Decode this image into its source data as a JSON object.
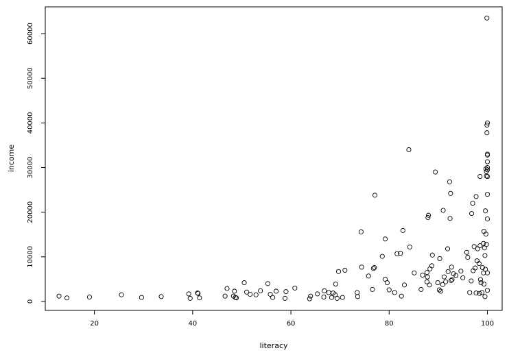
{
  "chart_data": {
    "type": "scatter",
    "title": "",
    "xlabel": "literacy",
    "ylabel": "income",
    "xlim": [
      10,
      103
    ],
    "ylim": [
      -2000,
      66000
    ],
    "x_ticks": [
      20,
      40,
      60,
      80,
      100
    ],
    "y_ticks": [
      0,
      10000,
      20000,
      30000,
      40000,
      50000,
      60000
    ],
    "x_tick_labels": [
      "20",
      "40",
      "60",
      "80",
      "100"
    ],
    "y_tick_labels": [
      "0",
      "10000",
      "20000",
      "30000",
      "40000",
      "50000",
      "60000"
    ],
    "grid": false,
    "marker": "open-circle",
    "marker_color": "#000000",
    "points": [
      [
        12.8,
        1200
      ],
      [
        14.4,
        800
      ],
      [
        19.0,
        1000
      ],
      [
        25.5,
        1500
      ],
      [
        29.6,
        900
      ],
      [
        33.6,
        1100
      ],
      [
        39.2,
        1700
      ],
      [
        39.5,
        700
      ],
      [
        41.0,
        1900
      ],
      [
        41.1,
        1800
      ],
      [
        41.4,
        800
      ],
      [
        46.6,
        1200
      ],
      [
        47.0,
        2900
      ],
      [
        48.3,
        1200
      ],
      [
        48.5,
        2300
      ],
      [
        48.7,
        900
      ],
      [
        48.9,
        800
      ],
      [
        50.5,
        4200
      ],
      [
        51.0,
        2100
      ],
      [
        51.7,
        1600
      ],
      [
        52.9,
        1500
      ],
      [
        53.8,
        2400
      ],
      [
        55.3,
        4000
      ],
      [
        55.8,
        1600
      ],
      [
        56.3,
        900
      ],
      [
        57.0,
        2300
      ],
      [
        58.8,
        700
      ],
      [
        59.0,
        2200
      ],
      [
        60.8,
        3000
      ],
      [
        63.8,
        600
      ],
      [
        64.0,
        1200
      ],
      [
        65.4,
        1700
      ],
      [
        66.7,
        1000
      ],
      [
        66.8,
        2400
      ],
      [
        67.7,
        2000
      ],
      [
        68.3,
        900
      ],
      [
        68.6,
        1900
      ],
      [
        69.0,
        1500
      ],
      [
        69.1,
        3900
      ],
      [
        69.4,
        700
      ],
      [
        69.7,
        6700
      ],
      [
        70.5,
        900
      ],
      [
        71.0,
        7000
      ],
      [
        73.5,
        2000
      ],
      [
        73.6,
        1100
      ],
      [
        74.3,
        15600
      ],
      [
        74.4,
        7700
      ],
      [
        75.8,
        5700
      ],
      [
        76.6,
        2700
      ],
      [
        76.8,
        7400
      ],
      [
        77.0,
        7600
      ],
      [
        77.1,
        23800
      ],
      [
        78.6,
        10100
      ],
      [
        79.2,
        14000
      ],
      [
        79.2,
        5000
      ],
      [
        79.6,
        4200
      ],
      [
        80.0,
        2600
      ],
      [
        81.1,
        2000
      ],
      [
        81.6,
        10700
      ],
      [
        82.3,
        10800
      ],
      [
        82.5,
        1200
      ],
      [
        82.8,
        15900
      ],
      [
        83.1,
        3700
      ],
      [
        84.0,
        34000
      ],
      [
        84.2,
        12200
      ],
      [
        85.1,
        6400
      ],
      [
        86.5,
        2700
      ],
      [
        86.8,
        5900
      ],
      [
        87.7,
        4400
      ],
      [
        87.7,
        6500
      ],
      [
        87.8,
        5500
      ],
      [
        87.9,
        18800
      ],
      [
        88.0,
        19300
      ],
      [
        88.2,
        3700
      ],
      [
        88.3,
        7300
      ],
      [
        88.7,
        8000
      ],
      [
        88.8,
        10400
      ],
      [
        89.4,
        29000
      ],
      [
        89.9,
        4200
      ],
      [
        90.2,
        2600
      ],
      [
        90.3,
        9600
      ],
      [
        90.5,
        2300
      ],
      [
        90.9,
        3800
      ],
      [
        91.0,
        20400
      ],
      [
        91.2,
        5500
      ],
      [
        91.5,
        4400
      ],
      [
        91.9,
        11800
      ],
      [
        92.0,
        6700
      ],
      [
        92.3,
        26800
      ],
      [
        92.4,
        18600
      ],
      [
        92.5,
        24200
      ],
      [
        92.6,
        4700
      ],
      [
        92.7,
        7700
      ],
      [
        92.8,
        4900
      ],
      [
        93.1,
        6200
      ],
      [
        93.6,
        5800
      ],
      [
        94.6,
        6800
      ],
      [
        95.0,
        5300
      ],
      [
        95.8,
        11000
      ],
      [
        96.0,
        9900
      ],
      [
        96.4,
        2000
      ],
      [
        96.7,
        4600
      ],
      [
        96.8,
        19700
      ],
      [
        97.0,
        22000
      ],
      [
        97.1,
        6900
      ],
      [
        97.3,
        12300
      ],
      [
        97.5,
        7500
      ],
      [
        97.7,
        23500
      ],
      [
        97.7,
        1900
      ],
      [
        97.9,
        9100
      ],
      [
        98.0,
        11800
      ],
      [
        98.3,
        8500
      ],
      [
        98.4,
        1800
      ],
      [
        98.5,
        28000
      ],
      [
        98.5,
        12500
      ],
      [
        98.6,
        4900
      ],
      [
        98.7,
        4200
      ],
      [
        98.9,
        2000
      ],
      [
        99.0,
        7600
      ],
      [
        99.2,
        13000
      ],
      [
        99.2,
        6400
      ],
      [
        99.3,
        15700
      ],
      [
        99.3,
        3900
      ],
      [
        99.4,
        12000
      ],
      [
        99.5,
        1100
      ],
      [
        99.5,
        10300
      ],
      [
        99.6,
        7200
      ],
      [
        99.6,
        20300
      ],
      [
        99.7,
        15100
      ],
      [
        99.7,
        29700
      ],
      [
        99.8,
        29100
      ],
      [
        99.8,
        28100
      ],
      [
        99.8,
        12800
      ],
      [
        99.9,
        63500
      ],
      [
        99.9,
        39500
      ],
      [
        99.9,
        37800
      ],
      [
        100.0,
        40000
      ],
      [
        100.0,
        33000
      ],
      [
        100.0,
        32800
      ],
      [
        100.0,
        31300
      ],
      [
        100.0,
        30000
      ],
      [
        100.0,
        29500
      ],
      [
        100.0,
        28000
      ],
      [
        100.0,
        24000
      ],
      [
        100.0,
        18500
      ],
      [
        100.0,
        2500
      ],
      [
        100.0,
        6400
      ]
    ]
  }
}
